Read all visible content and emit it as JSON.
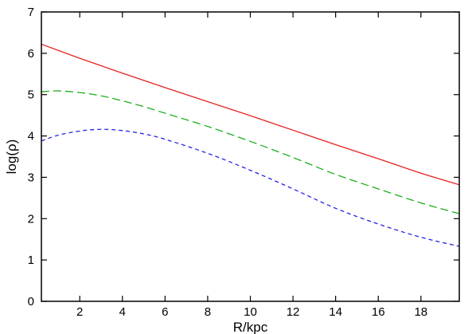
{
  "chart_data": {
    "type": "line",
    "title": "",
    "xlabel": "R/kpc",
    "ylabel": "log(ρ)",
    "xlim": [
      0.2,
      19.8
    ],
    "ylim": [
      0,
      7
    ],
    "xticks": [
      2,
      4,
      6,
      8,
      10,
      12,
      14,
      16,
      18
    ],
    "yticks": [
      0,
      1,
      2,
      3,
      4,
      5,
      6,
      7
    ],
    "grid": false,
    "legend": "none",
    "series": [
      {
        "color": "#e8211f",
        "dash": "solid",
        "x": [
          0.2,
          2,
          4,
          6,
          8,
          10,
          12,
          14,
          16,
          18,
          19.8
        ],
        "y": [
          6.22,
          5.88,
          5.52,
          5.17,
          4.83,
          4.49,
          4.14,
          3.79,
          3.45,
          3.1,
          2.82
        ]
      },
      {
        "color": "#1fae1f",
        "dash": "long",
        "x": [
          0.2,
          1,
          2,
          3,
          4,
          5,
          6,
          8,
          10,
          12,
          14,
          16,
          18,
          19.8
        ],
        "y": [
          5.07,
          5.09,
          5.05,
          4.97,
          4.85,
          4.71,
          4.55,
          4.23,
          3.87,
          3.48,
          3.07,
          2.72,
          2.38,
          2.12
        ]
      },
      {
        "color": "#2323e6",
        "dash": "short",
        "x": [
          0.2,
          1,
          2,
          3,
          4,
          5,
          6,
          8,
          10,
          12,
          14,
          16,
          18,
          19.8
        ],
        "y": [
          3.88,
          4.02,
          4.12,
          4.16,
          4.13,
          4.05,
          3.92,
          3.58,
          3.17,
          2.72,
          2.25,
          1.87,
          1.55,
          1.33
        ]
      }
    ]
  }
}
